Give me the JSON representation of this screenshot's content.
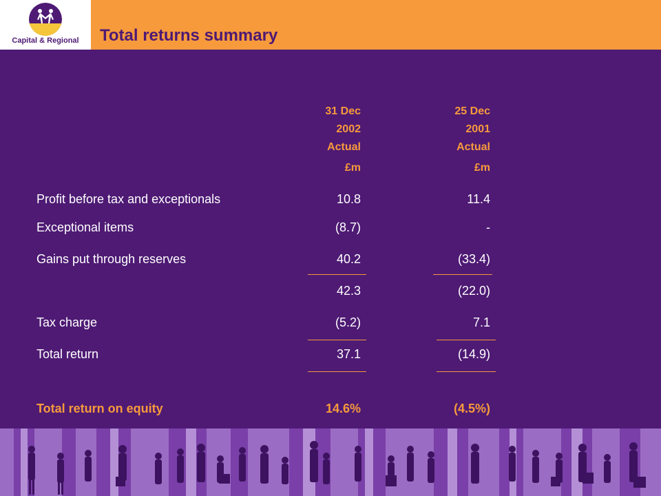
{
  "header": {
    "logo_text": "Capital & Regional",
    "title": "Total returns summary"
  },
  "columns": [
    {
      "line1": "31 Dec",
      "line2": "2002",
      "line3": "Actual",
      "unit": "£m"
    },
    {
      "line1": "25 Dec",
      "line2": "2001",
      "line3": "Actual",
      "unit": "£m"
    }
  ],
  "rows": [
    {
      "label": "Profit before tax and exceptionals",
      "v2002": "10.8",
      "v2001": "11.4"
    },
    {
      "label": "Exceptional items",
      "v2002": "(8.7)",
      "v2001": "-"
    },
    {
      "label": "Gains put through reserves",
      "v2002": "40.2",
      "v2001": "(33.4)"
    },
    {
      "label": "",
      "v2002": "42.3",
      "v2001": "(22.0)"
    },
    {
      "label": "Tax charge",
      "v2002": "(5.2)",
      "v2001": "7.1"
    },
    {
      "label": "Total return",
      "v2002": "37.1",
      "v2001": "(14.9)"
    },
    {
      "label": "Total return on equity",
      "v2002": "14.6%",
      "v2001": "(4.5%)"
    }
  ],
  "colors": {
    "background": "#4e1a74",
    "accent": "#f79a3c",
    "text": "#ffffff"
  }
}
